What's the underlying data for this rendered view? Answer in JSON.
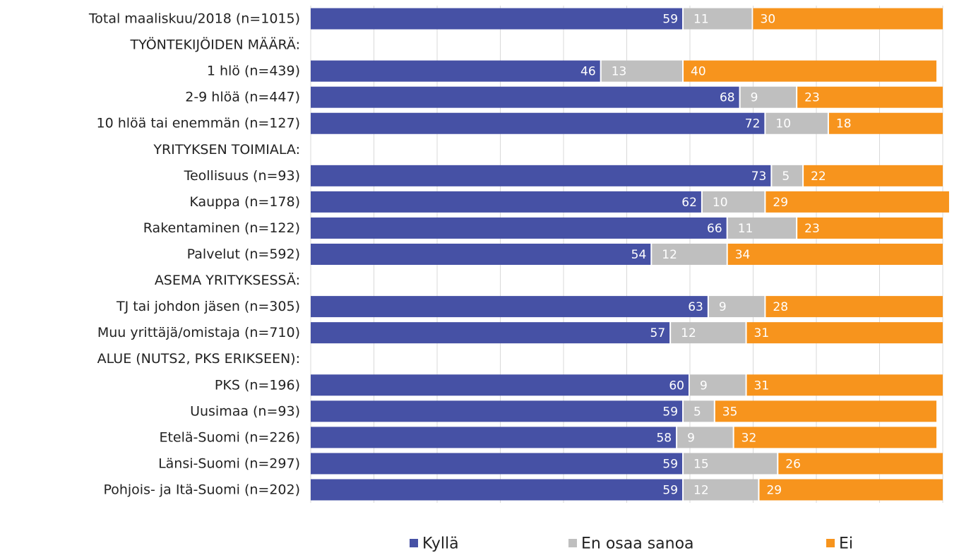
{
  "chart_data": {
    "type": "stacked-barh",
    "categories": [
      "Total maaliskuu/2018 (n=1015)",
      "TYÖNTEKIJÖIDEN MÄÄRÄ:",
      "1 hlö (n=439)",
      "2-9 hlöä (n=447)",
      "10 hlöä tai enemmän (n=127)",
      "YRITYKSEN TOIMIALA:",
      "Teollisuus (n=93)",
      "Kauppa  (n=178)",
      "Rakentaminen (n=122)",
      "Palvelut  (n=592)",
      "ASEMA YRITYKSESSÄ:",
      "TJ tai johdon jäsen (n=305)",
      "Muu yrittäjä/omistaja (n=710)",
      "ALUE (NUTS2, PKS ERIKSEEN):",
      "PKS (n=196)",
      "Uusimaa (n=93)",
      "Etelä-Suomi (n=226)",
      "Länsi-Suomi (n=297)",
      "Pohjois- ja Itä-Suomi (n=202)"
    ],
    "series": [
      {
        "name": "Kyllä",
        "color": "#4651a5",
        "values": [
          59,
          null,
          46,
          68,
          72,
          null,
          73,
          62,
          66,
          54,
          null,
          63,
          57,
          null,
          60,
          59,
          58,
          59,
          59
        ]
      },
      {
        "name": "En osaa sanoa",
        "color": "#bfbfbf",
        "values": [
          11,
          null,
          13,
          9,
          10,
          null,
          5,
          10,
          11,
          12,
          null,
          9,
          12,
          null,
          9,
          5,
          9,
          15,
          12
        ]
      },
      {
        "name": "Ei",
        "color": "#f7941d",
        "values": [
          30,
          null,
          40,
          23,
          18,
          null,
          22,
          29,
          23,
          34,
          null,
          28,
          31,
          null,
          31,
          35,
          32,
          26,
          29
        ]
      }
    ],
    "xlim": [
      0,
      100
    ],
    "xticks": [
      0,
      10,
      20,
      30,
      40,
      50,
      60,
      70,
      80,
      90,
      100
    ],
    "grid": true,
    "legend": "bottom"
  }
}
